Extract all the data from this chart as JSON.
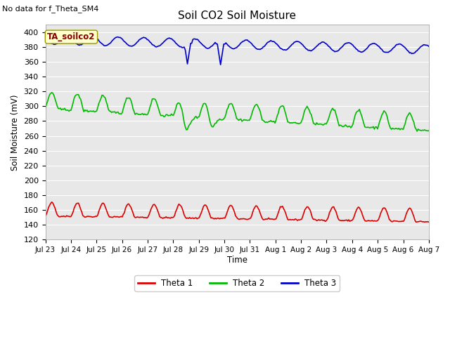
{
  "title": "Soil CO2 Soil Moisture",
  "no_data_text": "No data for f_Theta_SM4",
  "ylabel": "Soil Moisture (mV)",
  "xlabel": "Time",
  "annotation": "TA_soilco2",
  "ylim": [
    120,
    410
  ],
  "yticks": [
    120,
    140,
    160,
    180,
    200,
    220,
    240,
    260,
    280,
    300,
    320,
    340,
    360,
    380,
    400
  ],
  "background_color": "#e8e8e8",
  "legend_labels": [
    "Theta 1",
    "Theta 2",
    "Theta 3"
  ],
  "legend_colors": [
    "#ff0000",
    "#00cc00",
    "#0000ff"
  ],
  "line_width": 1.2,
  "xtick_labels": [
    "Jul 23",
    "Jul 24",
    "Jul 25",
    "Jul 26",
    "Jul 27",
    "Jul 28",
    "Jul 29",
    "Jul 30",
    "Jul 31",
    "Aug 1",
    "Aug 2",
    "Aug 3",
    "Aug 4",
    "Aug 5",
    "Aug 6",
    "Aug 7"
  ],
  "n_days": 15,
  "theta1_base": 152,
  "theta1_amp": 18,
  "theta2_base": 297,
  "theta2_amp": 22,
  "theta3_base": 390,
  "theta3_amp": 6
}
